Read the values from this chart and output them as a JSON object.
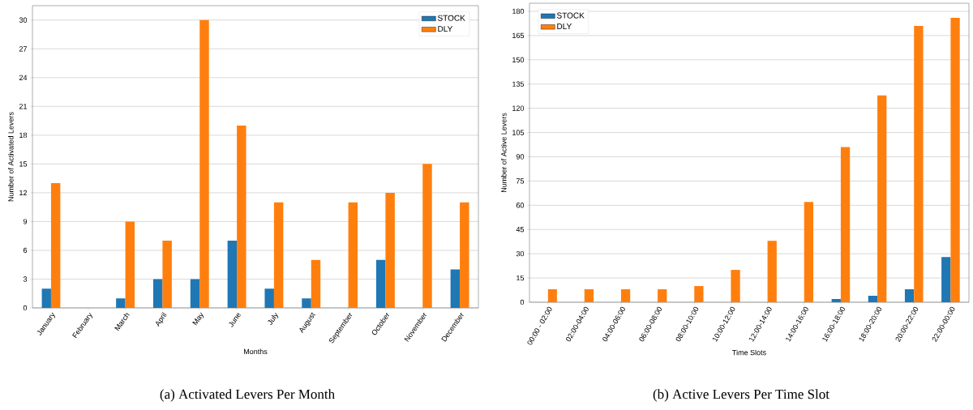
{
  "chart_data": [
    {
      "type": "bar",
      "xlabel": "Months",
      "ylabel": "Number of Activated Levers",
      "categories": [
        "January",
        "February",
        "March",
        "April",
        "May",
        "June",
        "July",
        "August",
        "September",
        "October",
        "November",
        "December"
      ],
      "series": [
        {
          "name": "STOCK",
          "color": "#1f77b4",
          "values": [
            2,
            0,
            1,
            3,
            3,
            7,
            2,
            1,
            0,
            5,
            0,
            4
          ]
        },
        {
          "name": "DLY",
          "color": "#ff7f0e",
          "values": [
            13,
            0,
            9,
            7,
            30,
            19,
            11,
            5,
            11,
            12,
            15,
            11
          ]
        }
      ],
      "ylim": [
        0,
        31.5
      ],
      "yticks": [
        0,
        3,
        6,
        9,
        12,
        15,
        18,
        21,
        24,
        27,
        30
      ],
      "grid": "y",
      "legend": "top right",
      "annotations": [
        "(a) Activated Levers Per Month"
      ]
    },
    {
      "type": "bar",
      "xlabel": "Time Slots",
      "ylabel": "Number of Active Levers",
      "categories": [
        "00:00 - 02:00",
        "02:00-04:00",
        "04:00-06:00",
        "06:00-08:00",
        "08:00-10:00",
        "10:00-12:00",
        "12:00-14:00",
        "14:00-16:00",
        "16:00-18:00",
        "18:00-20:00",
        "20:00-22:00",
        "22:00-00:00"
      ],
      "series": [
        {
          "name": "STOCK",
          "color": "#1f77b4",
          "values": [
            0,
            0,
            0,
            0,
            0,
            0,
            0,
            0,
            2,
            4,
            8,
            28
          ]
        },
        {
          "name": "DLY",
          "color": "#ff7f0e",
          "values": [
            8,
            8,
            8,
            8,
            10,
            20,
            38,
            62,
            96,
            128,
            171,
            176
          ]
        }
      ],
      "ylim": [
        0,
        185
      ],
      "yticks": [
        0,
        15,
        30,
        45,
        60,
        75,
        90,
        105,
        120,
        135,
        150,
        165,
        180
      ],
      "grid": "y",
      "legend": "top left",
      "annotations": [
        "(b) Active Levers Per Time Slot"
      ]
    }
  ]
}
